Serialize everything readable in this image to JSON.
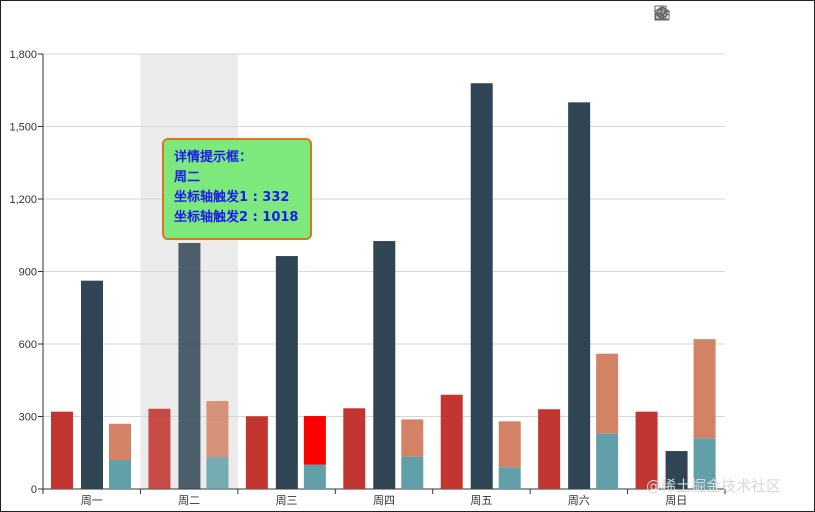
{
  "toolbar": {
    "icons": [
      "data-view-icon",
      "line-chart-icon",
      "bar-chart-icon",
      "stack-icon",
      "restore-icon",
      "save-image-icon"
    ]
  },
  "chart_data": {
    "type": "bar",
    "categories": [
      "周一",
      "周二",
      "周三",
      "周四",
      "周五",
      "周六",
      "周日"
    ],
    "series": [
      {
        "name": "坐标轴触发1",
        "values": [
          320,
          332,
          301,
          334,
          390,
          330,
          320
        ],
        "color": "#c23531"
      },
      {
        "name": "坐标轴触发2",
        "values": [
          862,
          1018,
          964,
          1026,
          1679,
          1600,
          157
        ],
        "color": "#2f4554"
      },
      {
        "name": "",
        "values": [
          120,
          132,
          101,
          134,
          90,
          230,
          210
        ],
        "color": "#61a0a8"
      },
      {
        "name": "",
        "values": [
          150,
          232,
          201,
          154,
          190,
          330,
          410
        ],
        "color": "#d48265"
      }
    ],
    "highlight": {
      "series": 3,
      "index": 2,
      "color": "#ff0000"
    },
    "hover_index": 1,
    "ylim": [
      0,
      1800
    ],
    "yticks": [
      "0",
      "300",
      "600",
      "900",
      "1,200",
      "1,500",
      "1,800"
    ],
    "grid": true
  },
  "tooltip": {
    "title": "详情提示框：",
    "category": "周二",
    "line1": "坐标轴触发1 : 332",
    "line2": "坐标轴触发2 : 1018"
  },
  "watermark": "@稀土掘金技术社区"
}
